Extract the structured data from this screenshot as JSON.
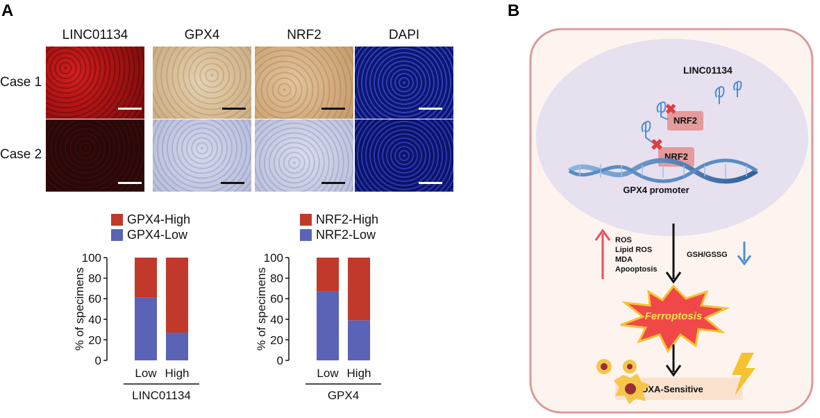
{
  "panel_a": {
    "letter": "A",
    "columns": [
      "LINC01134",
      "GPX4",
      "NRF2",
      "DAPI"
    ],
    "rows": [
      "Case 1",
      "Case 2"
    ],
    "legend_left": [
      {
        "label": "GPX4-High",
        "color": "#c0392b"
      },
      {
        "label": "GPX4-Low",
        "color": "#5b63b7"
      }
    ],
    "legend_right": [
      {
        "label": "NRF2-High",
        "color": "#c0392b"
      },
      {
        "label": "NRF2-Low",
        "color": "#5b63b7"
      }
    ]
  },
  "panel_b": {
    "letter": "B",
    "linc_label": "LINC01134",
    "nrf2_label_1": "NRF2",
    "nrf2_label_2": "NRF2",
    "promoter_label": "GPX4 promoter",
    "up_items": [
      "ROS",
      "Lipid ROS",
      "MDA",
      "Apooptosis"
    ],
    "down_label": "GSH/GSSG",
    "ferroptosis": "Ferroptosis",
    "outcome": "OXA-Sensitive",
    "colors": {
      "up_arrow": "#e8505b",
      "down_arrow": "#4a8ed6",
      "burst_fill": "#f04848",
      "burst_text": "#ffe14d"
    }
  },
  "chart_data": [
    {
      "type": "bar",
      "stacked": true,
      "categories": [
        "Low",
        "High"
      ],
      "series": [
        {
          "name": "GPX4-Low",
          "values": [
            61,
            27
          ],
          "color": "#5b63b7"
        },
        {
          "name": "GPX4-High",
          "values": [
            39,
            73
          ],
          "color": "#c0392b"
        }
      ],
      "xlabel": "LINC01134",
      "ylabel": "% of specimens",
      "yticks": [
        "0",
        "20",
        "40",
        "60",
        "80",
        "100"
      ],
      "ylim": [
        0,
        100
      ]
    },
    {
      "type": "bar",
      "stacked": true,
      "categories": [
        "Low",
        "High"
      ],
      "series": [
        {
          "name": "NRF2-Low",
          "values": [
            67,
            39
          ],
          "color": "#5b63b7"
        },
        {
          "name": "NRF2-High",
          "values": [
            33,
            61
          ],
          "color": "#c0392b"
        }
      ],
      "xlabel": "GPX4",
      "ylabel": "% of specimens",
      "yticks": [
        "0",
        "20",
        "40",
        "60",
        "80",
        "100"
      ],
      "ylim": [
        0,
        100
      ]
    }
  ]
}
